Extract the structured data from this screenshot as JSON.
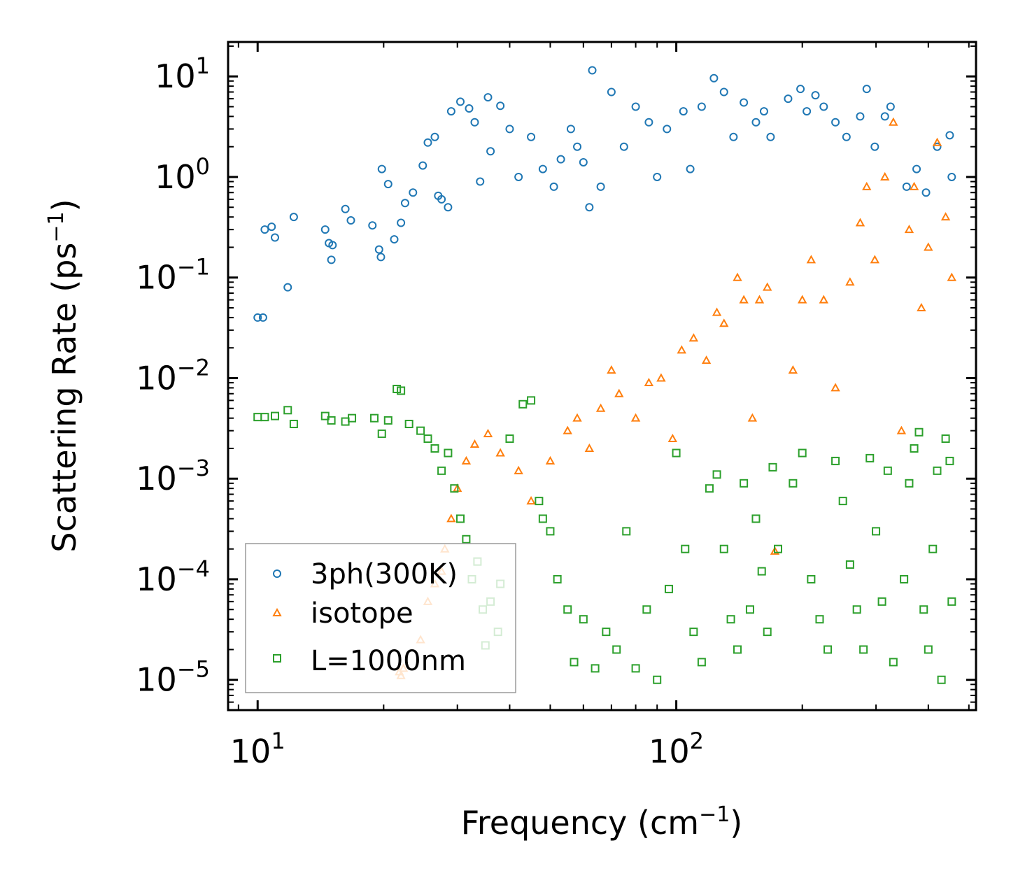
{
  "chart_data": {
    "type": "scatter",
    "xscale": "log",
    "yscale": "log",
    "xlabel": {
      "main": "Frequency (cm",
      "sup": "−1",
      "close": ")"
    },
    "ylabel": {
      "main": "Scattering Rate (ps",
      "sup": "−1",
      "close": ")"
    },
    "xlim": [
      8.5,
      520
    ],
    "ylim": [
      5e-06,
      22
    ],
    "x_ticks": [
      {
        "value": 10,
        "base": "10",
        "exp": "1"
      },
      {
        "value": 100,
        "base": "10",
        "exp": "2"
      }
    ],
    "y_ticks": [
      {
        "value": 10,
        "base": "10",
        "exp": "1"
      },
      {
        "value": 1,
        "base": "10",
        "exp": "0"
      },
      {
        "value": 0.1,
        "base": "10",
        "exp": "−1"
      },
      {
        "value": 0.01,
        "base": "10",
        "exp": "−2"
      },
      {
        "value": 0.001,
        "base": "10",
        "exp": "−3"
      },
      {
        "value": 0.0001,
        "base": "10",
        "exp": "−4"
      },
      {
        "value": 1e-05,
        "base": "10",
        "exp": "−5"
      }
    ],
    "legend_position": "lower-left",
    "series": [
      {
        "name": "3ph(300K)",
        "marker": "circle",
        "color": "#1f77b4",
        "points": [
          [
            10.0,
            0.04
          ],
          [
            10.3,
            0.04
          ],
          [
            10.4,
            0.3
          ],
          [
            10.8,
            0.32
          ],
          [
            11.0,
            0.25
          ],
          [
            11.8,
            0.08
          ],
          [
            12.2,
            0.4
          ],
          [
            14.5,
            0.3
          ],
          [
            14.8,
            0.22
          ],
          [
            15.0,
            0.15
          ],
          [
            15.1,
            0.21
          ],
          [
            16.2,
            0.48
          ],
          [
            16.7,
            0.37
          ],
          [
            18.8,
            0.33
          ],
          [
            19.5,
            0.19
          ],
          [
            19.7,
            0.16
          ],
          [
            19.8,
            1.2
          ],
          [
            20.5,
            0.85
          ],
          [
            21.2,
            0.24
          ],
          [
            22.0,
            0.35
          ],
          [
            22.5,
            0.55
          ],
          [
            23.5,
            0.7
          ],
          [
            24.8,
            1.3
          ],
          [
            25.5,
            2.2
          ],
          [
            26.5,
            2.5
          ],
          [
            27.0,
            0.65
          ],
          [
            27.5,
            0.6
          ],
          [
            28.5,
            0.5
          ],
          [
            29.0,
            4.5
          ],
          [
            30.5,
            5.6
          ],
          [
            32.0,
            4.8
          ],
          [
            33.0,
            3.5
          ],
          [
            34.0,
            0.9
          ],
          [
            35.5,
            6.2
          ],
          [
            36.0,
            1.8
          ],
          [
            38.0,
            5.1
          ],
          [
            40.0,
            3.0
          ],
          [
            42.0,
            1.0
          ],
          [
            45.0,
            2.5
          ],
          [
            48.0,
            1.2
          ],
          [
            51.0,
            0.8
          ],
          [
            53.0,
            1.5
          ],
          [
            56.0,
            3.0
          ],
          [
            58.0,
            2.0
          ],
          [
            60.0,
            1.4
          ],
          [
            62.0,
            0.5
          ],
          [
            63.0,
            11.5
          ],
          [
            66.0,
            0.8
          ],
          [
            70.0,
            7.0
          ],
          [
            75.0,
            2.0
          ],
          [
            80.0,
            5.0
          ],
          [
            86.0,
            3.5
          ],
          [
            90.0,
            1.0
          ],
          [
            95.0,
            3.0
          ],
          [
            104.0,
            4.5
          ],
          [
            108.0,
            1.2
          ],
          [
            115.0,
            5.0
          ],
          [
            123.0,
            9.6
          ],
          [
            130.0,
            7.0
          ],
          [
            137.0,
            2.5
          ],
          [
            145.0,
            5.5
          ],
          [
            155.0,
            3.5
          ],
          [
            162.0,
            4.5
          ],
          [
            168.0,
            2.5
          ],
          [
            185.0,
            6.0
          ],
          [
            198.0,
            7.5
          ],
          [
            205.0,
            4.5
          ],
          [
            215.0,
            6.5
          ],
          [
            225.0,
            5.0
          ],
          [
            240.0,
            3.5
          ],
          [
            255.0,
            2.5
          ],
          [
            275.0,
            4.0
          ],
          [
            285.0,
            7.5
          ],
          [
            298.0,
            2.0
          ],
          [
            315.0,
            4.0
          ],
          [
            325.0,
            5.0
          ],
          [
            355.0,
            0.8
          ],
          [
            375.0,
            1.2
          ],
          [
            395.0,
            0.7
          ],
          [
            420.0,
            2.0
          ],
          [
            450.0,
            2.6
          ],
          [
            455.0,
            1.0
          ]
        ]
      },
      {
        "name": "isotope",
        "marker": "triangle",
        "color": "#ff7f0e",
        "points": [
          [
            21.8,
            1.2e-05
          ],
          [
            22.0,
            1.1e-05
          ],
          [
            22.3,
            1.3e-05
          ],
          [
            24.5,
            2.5e-05
          ],
          [
            25.5,
            6e-05
          ],
          [
            26.5,
            9e-05
          ],
          [
            27.5,
            0.00012
          ],
          [
            28.0,
            0.0002
          ],
          [
            29.0,
            0.0004
          ],
          [
            30.0,
            0.0008
          ],
          [
            31.5,
            0.0015
          ],
          [
            33.0,
            0.0022
          ],
          [
            35.5,
            0.0028
          ],
          [
            38.0,
            0.0018
          ],
          [
            42.0,
            0.0012
          ],
          [
            45.0,
            0.0006
          ],
          [
            50.0,
            0.0015
          ],
          [
            55.0,
            0.003
          ],
          [
            58.0,
            0.004
          ],
          [
            62.0,
            0.002
          ],
          [
            66.0,
            0.005
          ],
          [
            70.0,
            0.012
          ],
          [
            73.0,
            0.007
          ],
          [
            80.0,
            0.004
          ],
          [
            86.0,
            0.009
          ],
          [
            92.0,
            0.01
          ],
          [
            98.0,
            0.0025
          ],
          [
            103.0,
            0.019
          ],
          [
            110.0,
            0.025
          ],
          [
            118.0,
            0.015
          ],
          [
            125.0,
            0.045
          ],
          [
            130.0,
            0.035
          ],
          [
            140.0,
            0.1
          ],
          [
            145.0,
            0.06
          ],
          [
            152.0,
            0.004
          ],
          [
            158.0,
            0.06
          ],
          [
            165.0,
            0.08
          ],
          [
            172.0,
            0.00019
          ],
          [
            190.0,
            0.012
          ],
          [
            200.0,
            0.06
          ],
          [
            210.0,
            0.15
          ],
          [
            225.0,
            0.06
          ],
          [
            240.0,
            0.008
          ],
          [
            260.0,
            0.09
          ],
          [
            275.0,
            0.35
          ],
          [
            285.0,
            0.8
          ],
          [
            298.0,
            0.15
          ],
          [
            315.0,
            1.0
          ],
          [
            330.0,
            3.5
          ],
          [
            345.0,
            0.003
          ],
          [
            360.0,
            0.3
          ],
          [
            370.0,
            0.8
          ],
          [
            385.0,
            0.05
          ],
          [
            400.0,
            0.2
          ],
          [
            420.0,
            2.2
          ],
          [
            440.0,
            0.4
          ],
          [
            455.0,
            0.1
          ]
        ]
      },
      {
        "name": "L=1000nm",
        "marker": "square",
        "color": "#2ca02c",
        "points": [
          [
            10.0,
            0.0041
          ],
          [
            10.4,
            0.0041
          ],
          [
            11.0,
            0.0042
          ],
          [
            11.8,
            0.0048
          ],
          [
            12.2,
            0.0035
          ],
          [
            14.5,
            0.0042
          ],
          [
            15.0,
            0.0038
          ],
          [
            16.2,
            0.0037
          ],
          [
            16.8,
            0.004
          ],
          [
            19.0,
            0.004
          ],
          [
            19.8,
            0.0028
          ],
          [
            20.5,
            0.0038
          ],
          [
            21.5,
            0.0078
          ],
          [
            22.0,
            0.0075
          ],
          [
            23.0,
            0.0035
          ],
          [
            24.5,
            0.003
          ],
          [
            25.5,
            0.0025
          ],
          [
            26.5,
            0.002
          ],
          [
            27.5,
            0.0012
          ],
          [
            28.5,
            0.0018
          ],
          [
            29.5,
            0.0008
          ],
          [
            30.5,
            0.0004
          ],
          [
            31.5,
            0.00025
          ],
          [
            32.5,
            0.0001
          ],
          [
            33.5,
            0.00015
          ],
          [
            34.5,
            5e-05
          ],
          [
            35.0,
            2.2e-05
          ],
          [
            36.0,
            6e-05
          ],
          [
            37.5,
            3e-05
          ],
          [
            38.0,
            9e-05
          ],
          [
            40.0,
            0.0025
          ],
          [
            43.0,
            0.0055
          ],
          [
            45.0,
            0.006
          ],
          [
            47.0,
            0.0006
          ],
          [
            48.0,
            0.0004
          ],
          [
            50.0,
            0.0003
          ],
          [
            52.0,
            0.0001
          ],
          [
            55.0,
            5e-05
          ],
          [
            57.0,
            1.5e-05
          ],
          [
            60.0,
            4e-05
          ],
          [
            64.0,
            1.3e-05
          ],
          [
            68.0,
            3e-05
          ],
          [
            72.0,
            2e-05
          ],
          [
            76.0,
            0.0003
          ],
          [
            80.0,
            1.3e-05
          ],
          [
            85.0,
            5e-05
          ],
          [
            90.0,
            1e-05
          ],
          [
            96.0,
            8e-05
          ],
          [
            100.0,
            0.0018
          ],
          [
            105.0,
            0.0002
          ],
          [
            110.0,
            3e-05
          ],
          [
            115.0,
            1.5e-05
          ],
          [
            120.0,
            0.0008
          ],
          [
            125.0,
            0.0011
          ],
          [
            130.0,
            0.0002
          ],
          [
            135.0,
            4e-05
          ],
          [
            140.0,
            2e-05
          ],
          [
            145.0,
            0.0009
          ],
          [
            150.0,
            5e-05
          ],
          [
            155.0,
            0.0004
          ],
          [
            160.0,
            0.00012
          ],
          [
            165.0,
            3e-05
          ],
          [
            170.0,
            0.0013
          ],
          [
            175.0,
            0.0002
          ],
          [
            190.0,
            0.0009
          ],
          [
            200.0,
            0.0018
          ],
          [
            210.0,
            0.0001
          ],
          [
            220.0,
            4e-05
          ],
          [
            230.0,
            2e-05
          ],
          [
            240.0,
            0.0015
          ],
          [
            250.0,
            0.0006
          ],
          [
            260.0,
            0.00014
          ],
          [
            270.0,
            5e-05
          ],
          [
            280.0,
            2e-05
          ],
          [
            290.0,
            0.0016
          ],
          [
            300.0,
            0.0003
          ],
          [
            310.0,
            6e-05
          ],
          [
            320.0,
            0.0012
          ],
          [
            330.0,
            1.5e-05
          ],
          [
            350.0,
            0.0001
          ],
          [
            360.0,
            0.0009
          ],
          [
            370.0,
            0.002
          ],
          [
            380.0,
            0.0029
          ],
          [
            390.0,
            5e-05
          ],
          [
            400.0,
            2e-05
          ],
          [
            410.0,
            0.0002
          ],
          [
            420.0,
            0.0012
          ],
          [
            430.0,
            1e-05
          ],
          [
            440.0,
            0.0025
          ],
          [
            450.0,
            0.0015
          ],
          [
            455.0,
            6e-05
          ]
        ]
      }
    ]
  }
}
